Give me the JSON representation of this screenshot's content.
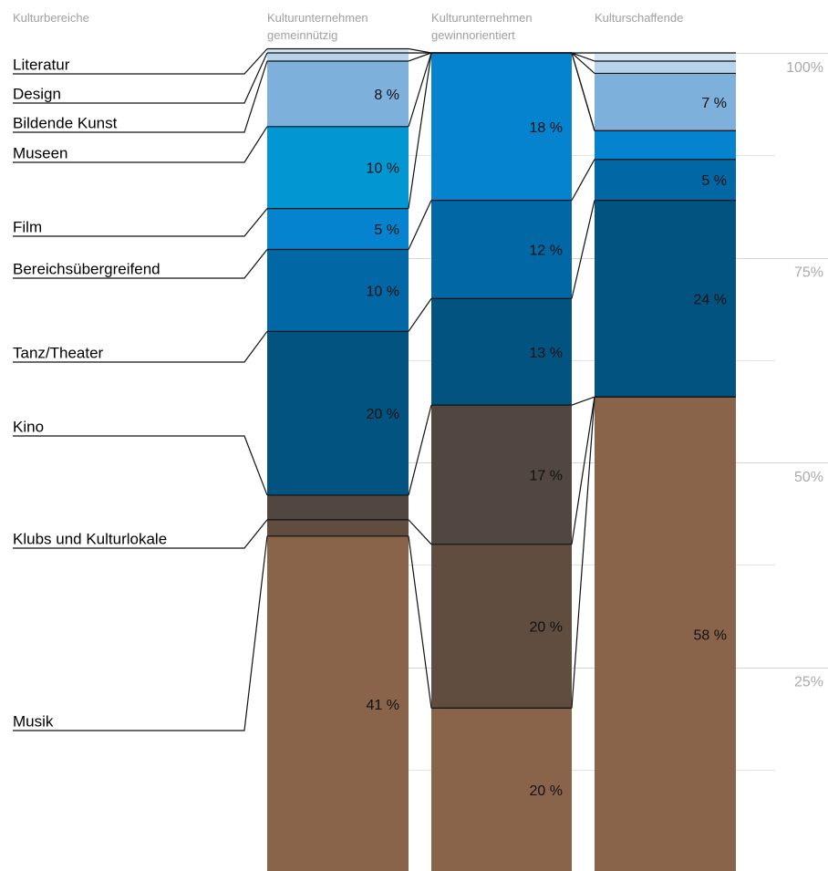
{
  "chart_data": {
    "type": "bar",
    "stacked": true,
    "normalized_percent": true,
    "title": "",
    "xlabel": "",
    "ylabel": "",
    "category_header": "Kulturbereiche",
    "categories": [
      "Kulturunternehmen gemeinnützig",
      "Kulturunternehmen gewinnorientiert",
      "Kulturschaffende"
    ],
    "category_lines": [
      [
        "Kulturunternehmen",
        "gemeinnützig"
      ],
      [
        "Kulturunternehmen",
        "gewinnorientiert"
      ],
      [
        "Kulturschaffende"
      ]
    ],
    "ylim": [
      0,
      100
    ],
    "yticks": [
      25,
      50,
      75,
      100
    ],
    "ytick_labels": [
      "25%",
      "50%",
      "75%",
      "100%"
    ],
    "grid": true,
    "segments_order": "bottom-to-top",
    "series": [
      {
        "name": "Musik",
        "color": "#8a634b",
        "values": [
          41,
          20,
          58
        ],
        "labels": [
          "41 %",
          "20 %",
          "58 %"
        ]
      },
      {
        "name": "Klubs und Kulturlokale",
        "color": "#614c40",
        "values": [
          2,
          20,
          0
        ],
        "labels": [
          "",
          "20 %",
          ""
        ]
      },
      {
        "name": "Kino",
        "color": "#524640",
        "values": [
          3,
          17,
          0
        ],
        "labels": [
          "",
          "17 %",
          ""
        ]
      },
      {
        "name": "Tanz/Theater",
        "color": "#025380",
        "values": [
          20,
          13,
          24
        ],
        "labels": [
          "20 %",
          "13 %",
          "24 %"
        ]
      },
      {
        "name": "Bereichsübergreifend",
        "color": "#0168a5",
        "values": [
          10,
          12,
          5
        ],
        "labels": [
          "10 %",
          "12 %",
          "5 %"
        ]
      },
      {
        "name": "Film",
        "color": "#0583cf",
        "values": [
          5,
          18,
          3.5
        ],
        "labels": [
          "5 %",
          "18 %",
          ""
        ]
      },
      {
        "name": "Museen",
        "color": "#0296d2",
        "values": [
          10,
          0,
          0
        ],
        "labels": [
          "10 %",
          "",
          ""
        ]
      },
      {
        "name": "Bildende Kunst",
        "color": "#7db0da",
        "values": [
          8,
          0,
          7
        ],
        "labels": [
          "8 %",
          "",
          "7 %"
        ]
      },
      {
        "name": "Design",
        "color": "#b7d2ea",
        "values": [
          1,
          0,
          1.5
        ],
        "labels": [
          "",
          "",
          ""
        ]
      },
      {
        "name": "Literatur",
        "color": "#d2e3f2",
        "values": [
          0.5,
          0,
          1
        ],
        "labels": [
          "",
          "",
          ""
        ]
      }
    ]
  }
}
